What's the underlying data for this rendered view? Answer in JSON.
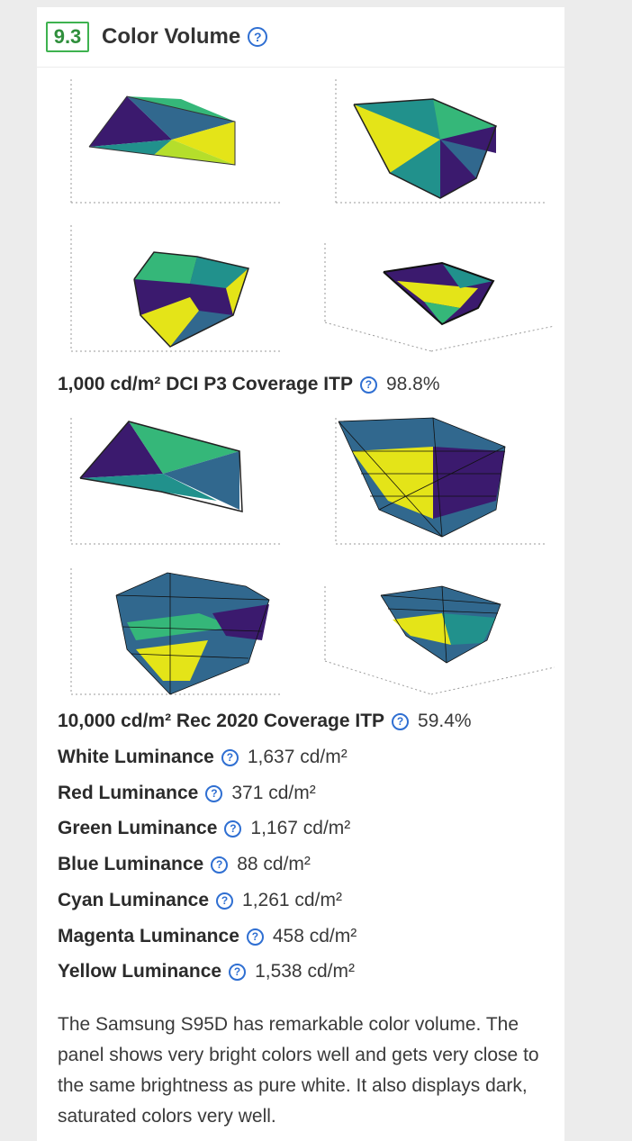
{
  "section": {
    "number": "9.3",
    "title": "Color Volume",
    "help_glyph": "?"
  },
  "metrics": [
    {
      "label": "1,000 cd/m² DCI P3 Coverage ITP",
      "value": "98.8%"
    },
    {
      "label": "10,000 cd/m² Rec 2020 Coverage ITP",
      "value": "59.4%"
    },
    {
      "label": "White Luminance",
      "value": "1,637 cd/m²"
    },
    {
      "label": "Red Luminance",
      "value": "371 cd/m²"
    },
    {
      "label": "Green Luminance",
      "value": "1,167 cd/m²"
    },
    {
      "label": "Blue Luminance",
      "value": "88 cd/m²"
    },
    {
      "label": "Cyan Luminance",
      "value": "1,261 cd/m²"
    },
    {
      "label": "Magenta Luminance",
      "value": "458 cd/m²"
    },
    {
      "label": "Yellow Luminance",
      "value": "1,538 cd/m²"
    }
  ],
  "description": "The Samsung S95D has remarkable color volume. The panel shows very bright colors well and gets very close to the same brightness as pure white. It also displays dark, saturated colors very well.",
  "colors": {
    "accent_green": "#3eb24f",
    "help_blue": "#2f6fd2",
    "viridis_purple": "#3b1a6e",
    "viridis_blue": "#31688e",
    "viridis_teal": "#21918c",
    "viridis_green": "#35b779",
    "viridis_yellow": "#e4e418"
  }
}
